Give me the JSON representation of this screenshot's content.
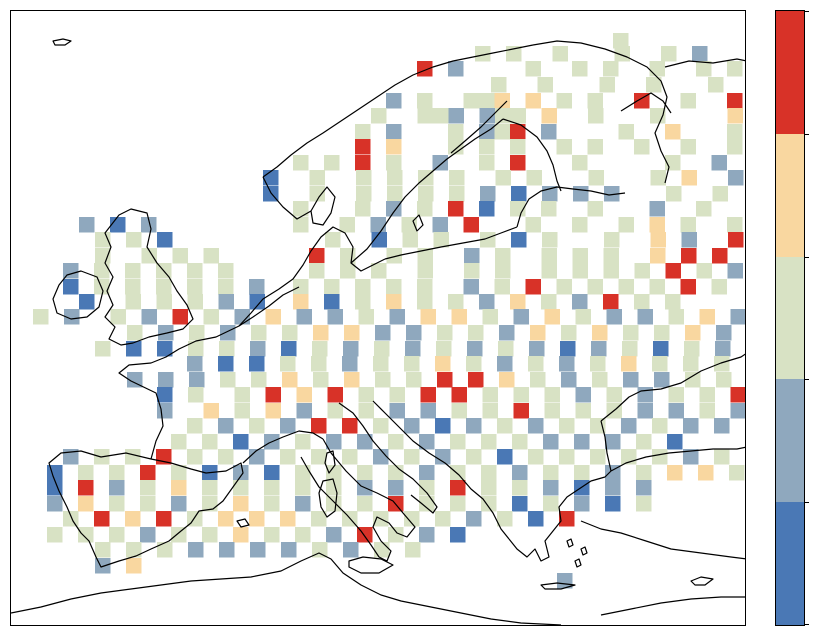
{
  "title": "",
  "colorbar": {
    "classes": [
      {
        "rank": 1,
        "color": "#4a78b5"
      },
      {
        "rank": 2,
        "color": "#8fa8be"
      },
      {
        "rank": 3,
        "color": "#d8e2c4"
      },
      {
        "rank": 4,
        "color": "#f9d7a0"
      },
      {
        "rank": 5,
        "color": "#d83228"
      }
    ],
    "tick_labels": []
  },
  "map": {
    "region": "Europe",
    "coastline_color": "#000000",
    "background": "#ffffff",
    "grid_cells_note_hidden": ""
  }
}
